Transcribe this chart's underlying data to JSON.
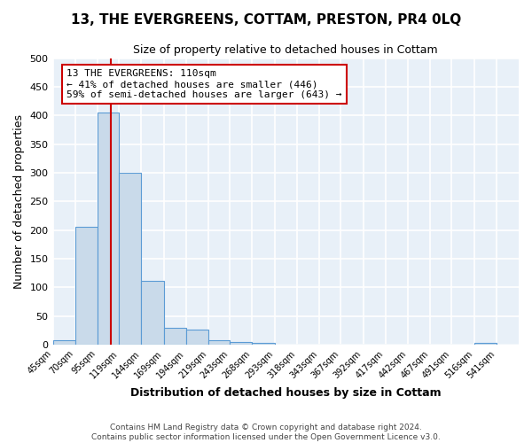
{
  "title": "13, THE EVERGREENS, COTTAM, PRESTON, PR4 0LQ",
  "subtitle": "Size of property relative to detached houses in Cottam",
  "xlabel": "Distribution of detached houses by size in Cottam",
  "ylabel": "Number of detached properties",
  "bar_left_edges": [
    45,
    70,
    95,
    119,
    144,
    169,
    194,
    219,
    243,
    268,
    293,
    318,
    343,
    367,
    392,
    417,
    442,
    467,
    491,
    516,
    541
  ],
  "bar_widths": [
    25,
    25,
    24,
    25,
    25,
    25,
    25,
    24,
    25,
    25,
    25,
    25,
    24,
    25,
    25,
    25,
    25,
    24,
    25,
    25,
    25
  ],
  "bar_heights": [
    8,
    205,
    405,
    300,
    112,
    30,
    27,
    8,
    5,
    3,
    0,
    0,
    0,
    0,
    0,
    0,
    0,
    0,
    0,
    3,
    0
  ],
  "bar_color": "#c9daea",
  "bar_edge_color": "#5b9bd5",
  "tick_labels": [
    "45sqm",
    "70sqm",
    "95sqm",
    "119sqm",
    "144sqm",
    "169sqm",
    "194sqm",
    "219sqm",
    "243sqm",
    "268sqm",
    "293sqm",
    "318sqm",
    "343sqm",
    "367sqm",
    "392sqm",
    "417sqm",
    "442sqm",
    "467sqm",
    "491sqm",
    "516sqm",
    "541sqm"
  ],
  "property_size": 110,
  "property_label": "13 THE EVERGREENS: 110sqm",
  "annotation_line1": "← 41% of detached houses are smaller (446)",
  "annotation_line2": "59% of semi-detached houses are larger (643) →",
  "red_line_color": "#cc0000",
  "annotation_box_facecolor": "#ffffff",
  "annotation_box_edgecolor": "#cc0000",
  "ylim": [
    0,
    500
  ],
  "yticks": [
    0,
    50,
    100,
    150,
    200,
    250,
    300,
    350,
    400,
    450,
    500
  ],
  "plot_bg_color": "#e8f0f8",
  "fig_bg_color": "#ffffff",
  "grid_color": "#ffffff",
  "footer_line1": "Contains HM Land Registry data © Crown copyright and database right 2024.",
  "footer_line2": "Contains public sector information licensed under the Open Government Licence v3.0."
}
